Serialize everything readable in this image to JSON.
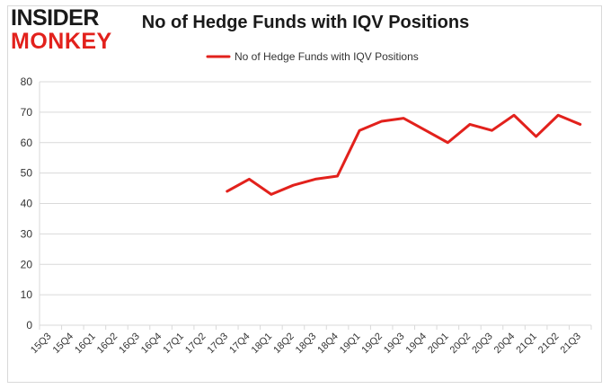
{
  "logo": {
    "line1": "INSIDER",
    "line2": "MONKEY",
    "colors": {
      "line1": "#1a1a1a",
      "line2": "#e2211c"
    }
  },
  "chart_data": {
    "type": "line",
    "title": "No of Hedge Funds with IQV Positions",
    "xlabel": "",
    "ylabel": "",
    "categories": [
      "15Q3",
      "15Q4",
      "16Q1",
      "16Q2",
      "16Q3",
      "16Q4",
      "17Q1",
      "17Q2",
      "17Q3",
      "17Q4",
      "18Q1",
      "18Q2",
      "18Q3",
      "18Q4",
      "19Q1",
      "19Q2",
      "19Q3",
      "19Q4",
      "20Q1",
      "20Q2",
      "20Q3",
      "20Q4",
      "21Q1",
      "21Q2",
      "21Q3"
    ],
    "series": [
      {
        "name": "No of Hedge Funds with IQV Positions",
        "color": "#e2211c",
        "values": [
          null,
          null,
          null,
          null,
          null,
          null,
          null,
          null,
          44,
          48,
          43,
          46,
          48,
          49,
          64,
          67,
          68,
          64,
          60,
          66,
          64,
          69,
          62,
          69,
          66
        ]
      }
    ],
    "ylim": [
      0,
      80
    ],
    "yticks": [
      0,
      10,
      20,
      30,
      40,
      50,
      60,
      70,
      80
    ],
    "grid": true,
    "legend": "top-center"
  }
}
